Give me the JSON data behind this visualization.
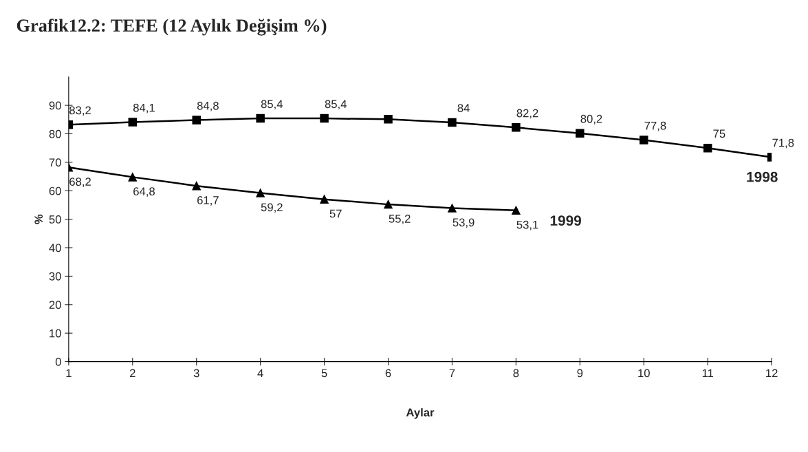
{
  "chart_data": {
    "type": "line",
    "title": "Grafik12.2: TEFE (12 Aylık Değişim %)",
    "xlabel": "Aylar",
    "ylabel": "%",
    "x": [
      1,
      2,
      3,
      4,
      5,
      6,
      7,
      8,
      9,
      10,
      11,
      12
    ],
    "series": [
      {
        "name": "1998",
        "color": "#000000",
        "marker": "square",
        "values": [
          83.2,
          84.1,
          84.8,
          85.4,
          85.4,
          85.1,
          84,
          82.2,
          80.2,
          77.8,
          75,
          71.8
        ],
        "value_labels": [
          "83,2",
          "84,1",
          "84,8",
          "85,4",
          "85,4",
          null,
          "84",
          "82,2",
          "80,2",
          "77,8",
          "75",
          "71,8"
        ]
      },
      {
        "name": "1999",
        "color": "#000000",
        "marker": "triangle",
        "values": [
          68.2,
          64.8,
          61.7,
          59.2,
          57,
          55.2,
          53.9,
          53.1,
          null,
          null,
          null,
          null
        ],
        "value_labels": [
          "68,2",
          "64,8",
          "61,7",
          "59,2",
          "57",
          "55,2",
          "53,9",
          "53,1",
          null,
          null,
          null,
          null
        ]
      }
    ],
    "xlim": [
      1,
      12
    ],
    "xticks": [
      1,
      2,
      3,
      4,
      5,
      6,
      7,
      8,
      9,
      10,
      11,
      12
    ],
    "ylim": [
      0,
      100
    ],
    "yticks": [
      0,
      10,
      20,
      30,
      40,
      50,
      60,
      70,
      80,
      90
    ],
    "grid": false,
    "legend": false,
    "line_style": "solid"
  }
}
